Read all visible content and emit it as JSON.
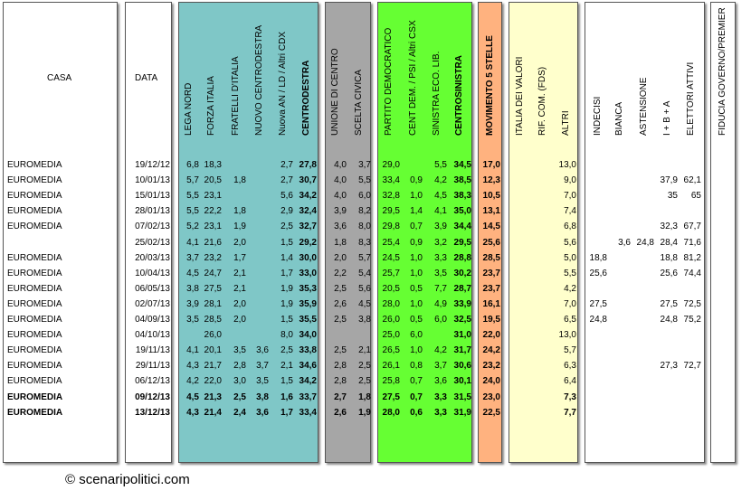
{
  "headers": {
    "casa": "CASA",
    "data": "DATA",
    "centrodestra": [
      "LEGA NORD",
      "FORZA ITALIA",
      "FRATELLI D'ITALIA",
      "NUOVO CENTRODESTRA",
      "Nuova AN / LD / Altri CDX",
      "CENTRODESTRA"
    ],
    "centro": [
      "UNIONE DI CENTRO",
      "SCELTA CIVICA"
    ],
    "centrosinistra": [
      "PARTITO DEMOCRATICO",
      "CENT DEM. / PSI / Altri CSX",
      "SINISTRA ECO. LIB.",
      "CENTROSINISTRA"
    ],
    "m5s": "MOVIMENTO 5 STELLE",
    "altri": [
      "ITALIA DEI VALORI",
      "RIF. COM. (FDS)",
      "ALTRI"
    ],
    "astensione": [
      "INDECISI",
      "BIANCA",
      "ASTENSIONE",
      "I + B + A",
      "ELETTORI ATTIVI"
    ],
    "fiducia": "FIDUCIA GOVERNO/PREMIER"
  },
  "colors": {
    "centrodestra": "#7fc7c7",
    "centro": "#a6a6a6",
    "centrosinistra": "#66ff33",
    "m5s": "#ffb27f",
    "altri": "#ffffcc",
    "white": "#ffffff"
  },
  "rows": [
    {
      "casa": "EUROMEDIA",
      "data": "19/12/12",
      "ln": "6,8",
      "fi": "18,3",
      "fdi": "",
      "ncd": "",
      "an": "2,7",
      "cdx": "27,8",
      "udc": "4,0",
      "sc": "3,7",
      "pd": "29,0",
      "cd": "",
      "sel": "5,5",
      "csx": "34,5",
      "m5s": "17,0",
      "idv": "",
      "rc": "",
      "alt": "13,0",
      "ind": "",
      "bia": "",
      "ast": "",
      "iba": "",
      "ea": "",
      "fid": "",
      "bold": false
    },
    {
      "casa": "EUROMEDIA",
      "data": "10/01/13",
      "ln": "5,7",
      "fi": "20,5",
      "fdi": "1,8",
      "ncd": "",
      "an": "2,7",
      "cdx": "30,7",
      "udc": "4,0",
      "sc": "5,5",
      "pd": "33,4",
      "cd": "0,9",
      "sel": "4,2",
      "csx": "38,5",
      "m5s": "12,3",
      "idv": "",
      "rc": "",
      "alt": "9,0",
      "ind": "",
      "bia": "",
      "ast": "",
      "iba": "37,9",
      "ea": "62,1",
      "fid": "",
      "bold": false
    },
    {
      "casa": "EUROMEDIA",
      "data": "15/01/13",
      "ln": "5,5",
      "fi": "23,1",
      "fdi": "",
      "ncd": "",
      "an": "5,6",
      "cdx": "34,2",
      "udc": "4,0",
      "sc": "6,0",
      "pd": "32,8",
      "cd": "1,0",
      "sel": "4,5",
      "csx": "38,3",
      "m5s": "10,5",
      "idv": "",
      "rc": "",
      "alt": "7,0",
      "ind": "",
      "bia": "",
      "ast": "",
      "iba": "35",
      "ea": "65",
      "fid": "",
      "bold": false
    },
    {
      "casa": "EUROMEDIA",
      "data": "28/01/13",
      "ln": "5,5",
      "fi": "22,2",
      "fdi": "1,8",
      "ncd": "",
      "an": "2,9",
      "cdx": "32,4",
      "udc": "3,9",
      "sc": "8,2",
      "pd": "29,5",
      "cd": "1,4",
      "sel": "4,1",
      "csx": "35,0",
      "m5s": "13,1",
      "idv": "",
      "rc": "",
      "alt": "7,4",
      "ind": "",
      "bia": "",
      "ast": "",
      "iba": "",
      "ea": "",
      "fid": "",
      "bold": false
    },
    {
      "casa": "EUROMEDIA",
      "data": "07/02/13",
      "ln": "5,2",
      "fi": "23,1",
      "fdi": "1,9",
      "ncd": "",
      "an": "2,5",
      "cdx": "32,7",
      "udc": "3,6",
      "sc": "8,0",
      "pd": "29,8",
      "cd": "0,7",
      "sel": "3,9",
      "csx": "34,4",
      "m5s": "14,5",
      "idv": "",
      "rc": "",
      "alt": "6,8",
      "ind": "",
      "bia": "",
      "ast": "",
      "iba": "32,3",
      "ea": "67,7",
      "fid": "",
      "bold": false
    },
    {
      "casa": "",
      "data": "25/02/13",
      "ln": "4,1",
      "fi": "21,6",
      "fdi": "2,0",
      "ncd": "",
      "an": "1,5",
      "cdx": "29,2",
      "udc": "1,8",
      "sc": "8,3",
      "pd": "25,4",
      "cd": "0,9",
      "sel": "3,2",
      "csx": "29,5",
      "m5s": "25,6",
      "idv": "",
      "rc": "",
      "alt": "5,6",
      "ind": "",
      "bia": "3,6",
      "ast": "24,8",
      "iba": "28,4",
      "ea": "71,6",
      "fid": "",
      "bold": false
    },
    {
      "casa": "EUROMEDIA",
      "data": "20/03/13",
      "ln": "3,7",
      "fi": "23,2",
      "fdi": "1,7",
      "ncd": "",
      "an": "1,4",
      "cdx": "30,0",
      "udc": "2,0",
      "sc": "5,7",
      "pd": "24,5",
      "cd": "1,0",
      "sel": "3,3",
      "csx": "28,8",
      "m5s": "28,5",
      "idv": "",
      "rc": "",
      "alt": "5,0",
      "ind": "18,8",
      "bia": "",
      "ast": "",
      "iba": "18,8",
      "ea": "81,2",
      "fid": "",
      "bold": false
    },
    {
      "casa": "EUROMEDIA",
      "data": "10/04/13",
      "ln": "4,5",
      "fi": "24,7",
      "fdi": "2,1",
      "ncd": "",
      "an": "1,7",
      "cdx": "33,0",
      "udc": "2,2",
      "sc": "5,4",
      "pd": "25,7",
      "cd": "1,0",
      "sel": "3,5",
      "csx": "30,2",
      "m5s": "23,7",
      "idv": "",
      "rc": "",
      "alt": "5,5",
      "ind": "25,6",
      "bia": "",
      "ast": "",
      "iba": "25,6",
      "ea": "74,4",
      "fid": "",
      "bold": false
    },
    {
      "casa": "EUROMEDIA",
      "data": "06/05/13",
      "ln": "3,8",
      "fi": "27,5",
      "fdi": "2,1",
      "ncd": "",
      "an": "1,9",
      "cdx": "35,3",
      "udc": "2,5",
      "sc": "5,6",
      "pd": "20,5",
      "cd": "0,5",
      "sel": "7,7",
      "csx": "28,7",
      "m5s": "23,7",
      "idv": "",
      "rc": "",
      "alt": "4,2",
      "ind": "",
      "bia": "",
      "ast": "",
      "iba": "",
      "ea": "",
      "fid": "",
      "bold": false
    },
    {
      "casa": "EUROMEDIA",
      "data": "02/07/13",
      "ln": "3,9",
      "fi": "28,1",
      "fdi": "2,0",
      "ncd": "",
      "an": "1,9",
      "cdx": "35,9",
      "udc": "2,6",
      "sc": "4,5",
      "pd": "28,0",
      "cd": "1,0",
      "sel": "4,9",
      "csx": "33,9",
      "m5s": "16,1",
      "idv": "",
      "rc": "",
      "alt": "7,0",
      "ind": "27,5",
      "bia": "",
      "ast": "",
      "iba": "27,5",
      "ea": "72,5",
      "fid": "",
      "bold": false
    },
    {
      "casa": "EUROMEDIA",
      "data": "04/09/13",
      "ln": "3,5",
      "fi": "28,5",
      "fdi": "2,0",
      "ncd": "",
      "an": "1,5",
      "cdx": "35,5",
      "udc": "2,5",
      "sc": "3,8",
      "pd": "26,0",
      "cd": "0,5",
      "sel": "6,0",
      "csx": "32,5",
      "m5s": "19,5",
      "idv": "",
      "rc": "",
      "alt": "6,5",
      "ind": "24,8",
      "bia": "",
      "ast": "",
      "iba": "24,8",
      "ea": "75,2",
      "fid": "",
      "bold": false
    },
    {
      "casa": "EUROMEDIA",
      "data": "04/10/13",
      "ln": "",
      "fi": "26,0",
      "fdi": "",
      "ncd": "",
      "an": "8,0",
      "cdx": "34,0",
      "udc": "",
      "sc": "",
      "pd": "25,0",
      "cd": "6,0",
      "sel": "",
      "csx": "31,0",
      "m5s": "22,0",
      "idv": "",
      "rc": "",
      "alt": "13,0",
      "ind": "",
      "bia": "",
      "ast": "",
      "iba": "",
      "ea": "",
      "fid": "",
      "bold": false
    },
    {
      "casa": "EUROMEDIA",
      "data": "19/11/13",
      "ln": "4,1",
      "fi": "20,1",
      "fdi": "3,5",
      "ncd": "3,6",
      "an": "2,5",
      "cdx": "33,8",
      "udc": "2,5",
      "sc": "2,1",
      "pd": "26,5",
      "cd": "1,0",
      "sel": "4,2",
      "csx": "31,7",
      "m5s": "24,2",
      "idv": "",
      "rc": "",
      "alt": "5,7",
      "ind": "",
      "bia": "",
      "ast": "",
      "iba": "",
      "ea": "",
      "fid": "",
      "bold": false
    },
    {
      "casa": "EUROMEDIA",
      "data": "29/11/13",
      "ln": "4,3",
      "fi": "21,7",
      "fdi": "2,8",
      "ncd": "3,7",
      "an": "2,1",
      "cdx": "34,6",
      "udc": "2,8",
      "sc": "2,5",
      "pd": "26,1",
      "cd": "0,8",
      "sel": "3,7",
      "csx": "30,6",
      "m5s": "23,2",
      "idv": "",
      "rc": "",
      "alt": "6,3",
      "ind": "",
      "bia": "",
      "ast": "",
      "iba": "27,3",
      "ea": "72,7",
      "fid": "",
      "bold": false
    },
    {
      "casa": "EUROMEDIA",
      "data": "06/12/13",
      "ln": "4,2",
      "fi": "22,0",
      "fdi": "3,0",
      "ncd": "3,5",
      "an": "1,5",
      "cdx": "34,2",
      "udc": "2,8",
      "sc": "2,5",
      "pd": "25,8",
      "cd": "0,7",
      "sel": "3,6",
      "csx": "30,1",
      "m5s": "24,0",
      "idv": "",
      "rc": "",
      "alt": "6,4",
      "ind": "",
      "bia": "",
      "ast": "",
      "iba": "",
      "ea": "",
      "fid": "",
      "bold": false
    },
    {
      "casa": "EUROMEDIA",
      "data": "09/12/13",
      "ln": "4,5",
      "fi": "21,3",
      "fdi": "2,5",
      "ncd": "3,8",
      "an": "1,6",
      "cdx": "33,7",
      "udc": "2,7",
      "sc": "1,8",
      "pd": "27,5",
      "cd": "0,7",
      "sel": "3,3",
      "csx": "31,5",
      "m5s": "23,0",
      "idv": "",
      "rc": "",
      "alt": "7,3",
      "ind": "",
      "bia": "",
      "ast": "",
      "iba": "",
      "ea": "",
      "fid": "",
      "bold": true
    },
    {
      "casa": "EUROMEDIA",
      "data": "13/12/13",
      "ln": "4,3",
      "fi": "21,4",
      "fdi": "2,4",
      "ncd": "3,6",
      "an": "1,7",
      "cdx": "33,4",
      "udc": "2,6",
      "sc": "1,9",
      "pd": "28,0",
      "cd": "0,6",
      "sel": "3,3",
      "csx": "31,9",
      "m5s": "22,5",
      "idv": "",
      "rc": "",
      "alt": "7,7",
      "ind": "",
      "bia": "",
      "ast": "",
      "iba": "",
      "ea": "",
      "fid": "",
      "bold": true
    }
  ],
  "footer": "© scenaripolitici.com"
}
